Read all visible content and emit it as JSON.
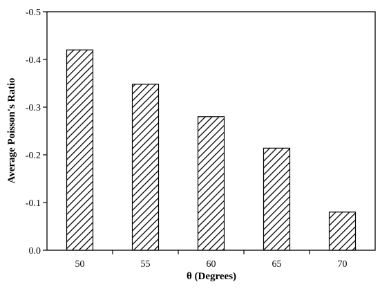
{
  "chart_data": {
    "type": "bar",
    "title": "",
    "xlabel": "θ (Degrees)",
    "ylabel": "Average Poisson's Ratio",
    "categories": [
      "50",
      "55",
      "60",
      "65",
      "70"
    ],
    "values": [
      -0.42,
      -0.348,
      -0.28,
      -0.214,
      -0.08
    ],
    "ylim": [
      0.0,
      -0.5
    ],
    "yticks": [
      0.0,
      -0.1,
      -0.2,
      -0.3,
      -0.4,
      -0.5
    ],
    "ytick_labels": [
      "0.0",
      "-0.1",
      "-0.2",
      "-0.3",
      "-0.4",
      "-0.5"
    ],
    "grid": false,
    "legend": "none",
    "bar_fill": "diagonal-hatch",
    "bar_color": "#000000",
    "background": "#ffffff"
  }
}
